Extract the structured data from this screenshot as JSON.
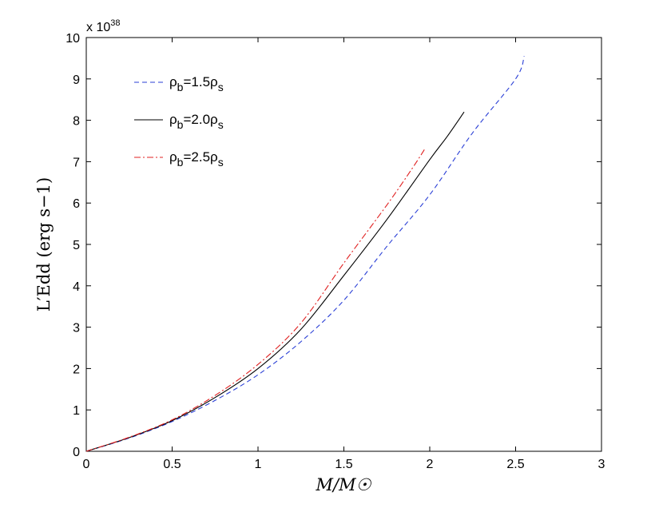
{
  "chart_data": {
    "type": "line",
    "xlabel": "M/M☉",
    "ylabel": "L′Edd (erg s−1)",
    "y_exponent_label": "x 10",
    "y_exponent": "38",
    "xlim": [
      0,
      3
    ],
    "ylim": [
      0,
      10
    ],
    "x_ticks": [
      "0",
      "0.5",
      "1",
      "1.5",
      "2",
      "2.5",
      "3"
    ],
    "y_ticks": [
      "0",
      "1",
      "2",
      "3",
      "4",
      "5",
      "6",
      "7",
      "8",
      "9",
      "10"
    ],
    "grid": false,
    "legend_position": "top-left",
    "series": [
      {
        "name": "ρb=1.5ρs",
        "legend": {
          "rho": "ρ",
          "sub1": "b",
          "mid": "=1.5",
          "rho2": "ρ",
          "sub2": "s"
        },
        "color": "#2a3fd6",
        "dash": "dashed",
        "x": [
          0,
          0.25,
          0.5,
          0.75,
          1.0,
          1.25,
          1.5,
          1.75,
          2.0,
          2.25,
          2.5,
          2.55
        ],
        "y": [
          0,
          0.32,
          0.72,
          1.23,
          1.85,
          2.65,
          3.65,
          4.95,
          6.2,
          7.7,
          9.0,
          9.55
        ]
      },
      {
        "name": "ρb=2.0ρs",
        "legend": {
          "rho": "ρ",
          "sub1": "b",
          "mid": "=2.0",
          "rho2": "ρ",
          "sub2": "s"
        },
        "color": "#000000",
        "dash": "solid",
        "x": [
          0,
          0.25,
          0.5,
          0.75,
          1.0,
          1.25,
          1.5,
          1.75,
          2.0,
          2.1,
          2.2
        ],
        "y": [
          0,
          0.33,
          0.74,
          1.3,
          2.0,
          2.95,
          4.25,
          5.6,
          7.05,
          7.6,
          8.2
        ]
      },
      {
        "name": "ρb=2.5ρs",
        "legend": {
          "rho": "ρ",
          "sub1": "b",
          "mid": "=2.5",
          "rho2": "ρ",
          "sub2": "s"
        },
        "color": "#e02020",
        "dash": "dashdot",
        "x": [
          0,
          0.25,
          0.5,
          0.75,
          1.0,
          1.25,
          1.5,
          1.75,
          1.9,
          1.97
        ],
        "y": [
          0,
          0.34,
          0.76,
          1.35,
          2.1,
          3.1,
          4.55,
          5.95,
          6.85,
          7.3
        ]
      }
    ]
  }
}
